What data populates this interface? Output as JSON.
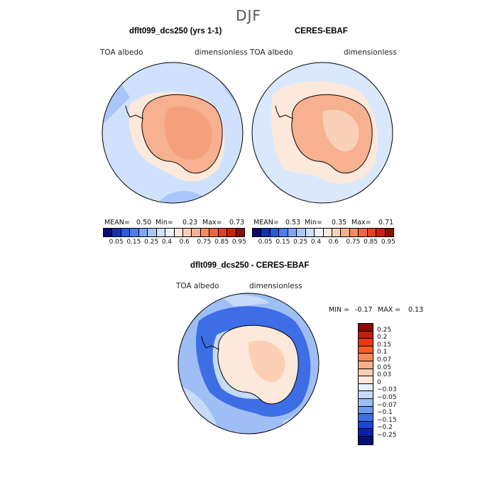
{
  "page": {
    "title": "DJF"
  },
  "panels": [
    {
      "title": "dflt099_dcs250 (yrs 1-1)",
      "field_label": "TOA albedo",
      "units_label": "dimensionless",
      "mean_label": "MEAN=",
      "mean": "0.50",
      "min_label": "Min=",
      "min": "0.23",
      "max_label": "Max=",
      "max": "0.73"
    },
    {
      "title": "CERES-EBAF",
      "field_label": "TOA albedo",
      "units_label": "dimensionless",
      "mean_label": "MEAN=",
      "mean": "0.53",
      "min_label": "Min=",
      "min": "0.35",
      "max_label": "Max=",
      "max": "0.71"
    }
  ],
  "colorbar_top": {
    "ticks": [
      "0.05",
      "0.15",
      "0.25",
      "0.4",
      "0.6",
      "0.75",
      "0.85",
      "0.95"
    ],
    "colors": [
      "#0a0a6e",
      "#1432a8",
      "#2a5ad8",
      "#4a7ef0",
      "#7ea6f6",
      "#a8c6fa",
      "#cfe1fc",
      "#eef4fd",
      "#fde9dc",
      "#fbd0b8",
      "#f7b090",
      "#f38a64",
      "#ee6640",
      "#e0421e",
      "#c42410",
      "#8c1004"
    ]
  },
  "diff": {
    "title": "dflt099_dcs250 - CERES-EBAF",
    "field_label": "TOA albedo",
    "units_label": "dimensionless",
    "min_label": "MIN =",
    "min": "-0.17",
    "max_label": "MAX =",
    "max": "0.13"
  },
  "colorbar_diff": {
    "labels": [
      "0.25",
      "0.2",
      "0.15",
      "0.1",
      "0.07",
      "0.05",
      "0.03",
      "0",
      "−0.03",
      "−0.05",
      "−0.07",
      "−0.1",
      "−0.15",
      "−0.2",
      "−0.25"
    ],
    "colors": [
      "#8c0a04",
      "#c2200c",
      "#e43c10",
      "#f75e26",
      "#f98a58",
      "#fbb08c",
      "#fdcfb4",
      "#fde9dc",
      "#e7f0fc",
      "#c6daf9",
      "#9fbef5",
      "#6e9bef",
      "#3d6ee6",
      "#1a46d6",
      "#0a22a8",
      "#061078"
    ]
  },
  "map_colors": {
    "ocean_top": "#cfe1fc",
    "ocean_top_light": "#d9e8fd",
    "ocean_patch": "#a8c6fa",
    "ice_edge": "#fde9dc",
    "ant_model": "#f7b090",
    "ant_model_inner": "#f5a07c",
    "ant_obs": "#f7b090",
    "ant_obs_inner": "#fbd0b8",
    "diff_ocean": "#9fbef5",
    "diff_deep": "#3d6ee6",
    "diff_light": "#c6daf9",
    "diff_ant": "#fde9dc",
    "diff_ant_pos": "#fdcfb4",
    "diff_zero": "#eef4fd"
  }
}
